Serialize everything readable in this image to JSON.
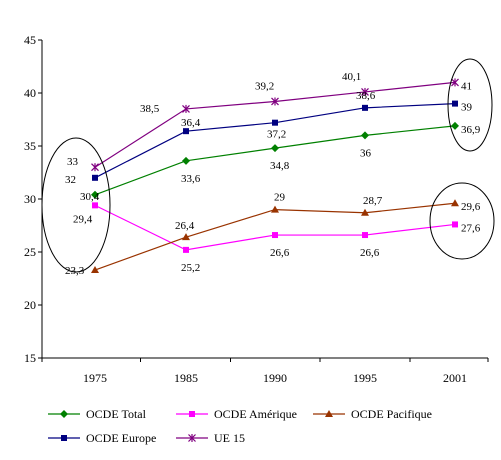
{
  "chart_data": {
    "type": "line",
    "title": "",
    "xlabel": "",
    "ylabel": "",
    "categories": [
      "1975",
      "1985",
      "1990",
      "1995",
      "2001"
    ],
    "ylim": [
      15,
      45
    ],
    "yticks": [
      "15",
      "20",
      "25",
      "30",
      "35",
      "40",
      "45"
    ],
    "grid": false,
    "legend_position": "bottom",
    "series": [
      {
        "name": "OCDE Total",
        "values": [
          30.4,
          33.6,
          34.8,
          36,
          36.9
        ],
        "labels": [
          "30,4",
          "33,6",
          "34,8",
          "36",
          "36,9"
        ],
        "color": "#008000",
        "marker": "diamond"
      },
      {
        "name": "OCDE Amérique",
        "values": [
          29.4,
          25.2,
          26.6,
          26.6,
          27.6
        ],
        "labels": [
          "29,4",
          "25,2",
          "26,6",
          "26,6",
          "27,6"
        ],
        "color": "#FF00FF",
        "marker": "square"
      },
      {
        "name": "OCDE Pacifique",
        "values": [
          23.3,
          26.4,
          29,
          28.7,
          29.6
        ],
        "labels": [
          "23,3",
          "26,4",
          "29",
          "28,7",
          "29,6"
        ],
        "color": "#993300",
        "marker": "triangle"
      },
      {
        "name": "OCDE Europe",
        "values": [
          32,
          36.4,
          37.2,
          38.6,
          39
        ],
        "labels": [
          "32",
          "36,4",
          "37,2",
          "38,6",
          "39"
        ],
        "color": "#000080",
        "marker": "square"
      },
      {
        "name": "UE 15",
        "values": [
          33,
          38.5,
          39.2,
          40.1,
          41
        ],
        "labels": [
          "33",
          "38,5",
          "39,2",
          "40,1",
          "41"
        ],
        "color": "#800080",
        "marker": "star"
      }
    ],
    "annotations": [
      "ellipse around 1975 values",
      "ellipse around 2001 upper values",
      "ellipse around 2001 lower values"
    ]
  }
}
